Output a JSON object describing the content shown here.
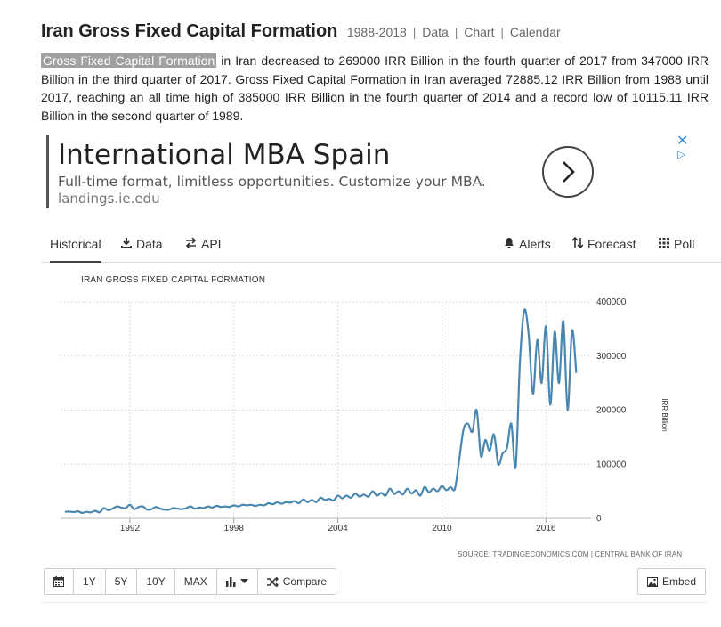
{
  "header": {
    "title": "Iran Gross Fixed Capital Formation",
    "years": "1988-2018",
    "links": [
      "Data",
      "Chart",
      "Calendar"
    ]
  },
  "description": {
    "highlight": "Gross Fixed Capital Formation",
    "text": " in Iran decreased to 269000 IRR Billion in the fourth quarter of 2017 from 347000 IRR Billion in the third quarter of 2017. Gross Fixed Capital Formation in Iran averaged 72885.12 IRR Billion from 1988 until 2017, reaching an all time high of 385000 IRR Billion in the fourth quarter of 2014 and a record low of 10115.11 IRR Billion in the second quarter of 1989."
  },
  "ad": {
    "title": "International MBA Spain",
    "text": "Full-time format, limitless opportunities. Customize your MBA.",
    "url": "landings.ie.edu",
    "close": "✕",
    "choice": "▷"
  },
  "tabs": {
    "historical": "Historical",
    "data": "Data",
    "api": "API",
    "alerts": "Alerts",
    "forecast": "Forecast",
    "poll": "Poll"
  },
  "chart_data": {
    "type": "line",
    "title": "IRAN GROSS FIXED CAPITAL FORMATION",
    "ylabel": "IRR Billion",
    "xlabel": "",
    "ylim": [
      0,
      400000
    ],
    "yticks": [
      0,
      100000,
      200000,
      300000,
      400000
    ],
    "xticks": [
      1992,
      1998,
      2004,
      2010,
      2016
    ],
    "xlim": [
      1988.0,
      2018.6
    ],
    "grid": true,
    "series_color": "#4a87b0",
    "series": [
      {
        "x": [
          1988.25,
          1988.5,
          1988.75,
          1989.0,
          1989.25,
          1989.5,
          1989.75,
          1990.0,
          1990.25,
          1990.5,
          1990.75,
          1991.0,
          1991.25,
          1991.5,
          1991.75,
          1992.0,
          1992.25,
          1992.5,
          1992.75,
          1993.0,
          1993.25,
          1993.5,
          1993.75,
          1994.0,
          1994.25,
          1994.5,
          1994.75,
          1995.0,
          1995.25,
          1995.5,
          1995.75,
          1996.0,
          1996.25,
          1996.5,
          1996.75,
          1997.0,
          1997.25,
          1997.5,
          1997.75,
          1998.0,
          1998.25,
          1998.5,
          1998.75,
          1999.0,
          1999.25,
          1999.5,
          1999.75,
          2000.0,
          2000.25,
          2000.5,
          2000.75,
          2001.0,
          2001.25,
          2001.5,
          2001.75,
          2002.0,
          2002.25,
          2002.5,
          2002.75,
          2003.0,
          2003.25,
          2003.5,
          2003.75,
          2004.0,
          2004.25,
          2004.5,
          2004.75,
          2005.0,
          2005.25,
          2005.5,
          2005.75,
          2006.0,
          2006.25,
          2006.5,
          2006.75,
          2007.0,
          2007.25,
          2007.5,
          2007.75,
          2008.0,
          2008.25,
          2008.5,
          2008.75,
          2009.0,
          2009.25,
          2009.5,
          2009.75,
          2010.0,
          2010.25,
          2010.5,
          2010.75,
          2011.0,
          2011.25,
          2011.5,
          2011.75,
          2012.0,
          2012.25,
          2012.5,
          2012.75,
          2013.0,
          2013.25,
          2013.5,
          2013.75,
          2014.0,
          2014.25,
          2014.5,
          2014.75,
          2015.0,
          2015.25,
          2015.5,
          2015.75,
          2016.0,
          2016.25,
          2016.5,
          2016.75,
          2017.0,
          2017.25,
          2017.5,
          2017.75
        ],
        "values": [
          12000,
          12500,
          11500,
          13000,
          10115,
          12000,
          11000,
          14000,
          11000,
          19000,
          15000,
          18000,
          22000,
          20000,
          19000,
          25000,
          17000,
          21000,
          22000,
          16000,
          17000,
          21000,
          18000,
          16000,
          16000,
          19000,
          18000,
          17000,
          19000,
          22000,
          18000,
          20000,
          19000,
          22000,
          20000,
          23000,
          21000,
          22000,
          21000,
          24000,
          22000,
          25000,
          24000,
          25000,
          23000,
          25000,
          24000,
          28000,
          26000,
          30000,
          27000,
          30000,
          29000,
          32000,
          28000,
          35000,
          30000,
          34000,
          30000,
          38000,
          34000,
          36000,
          33000,
          42000,
          37000,
          42000,
          38000,
          46000,
          40000,
          44000,
          40000,
          50000,
          42000,
          47000,
          42000,
          55000,
          45000,
          50000,
          44000,
          55000,
          46000,
          52000,
          42000,
          58000,
          48000,
          55000,
          50000,
          60000,
          52000,
          58000,
          55000,
          110000,
          165000,
          175000,
          160000,
          200000,
          115000,
          145000,
          125000,
          155000,
          100000,
          120000,
          130000,
          175000,
          95000,
          290000,
          385000,
          340000,
          230000,
          330000,
          250000,
          355000,
          210000,
          345000,
          250000,
          365000,
          200000,
          347000,
          269000
        ]
      }
    ],
    "source": "SOURCE: TRADINGECONOMICS.COM | CENTRAL BANK OF IRAN"
  },
  "toolbar": {
    "calendar_icon": "calendar-icon",
    "ranges": [
      "1Y",
      "5Y",
      "10Y",
      "MAX"
    ],
    "compare": "Compare",
    "embed": "Embed"
  }
}
